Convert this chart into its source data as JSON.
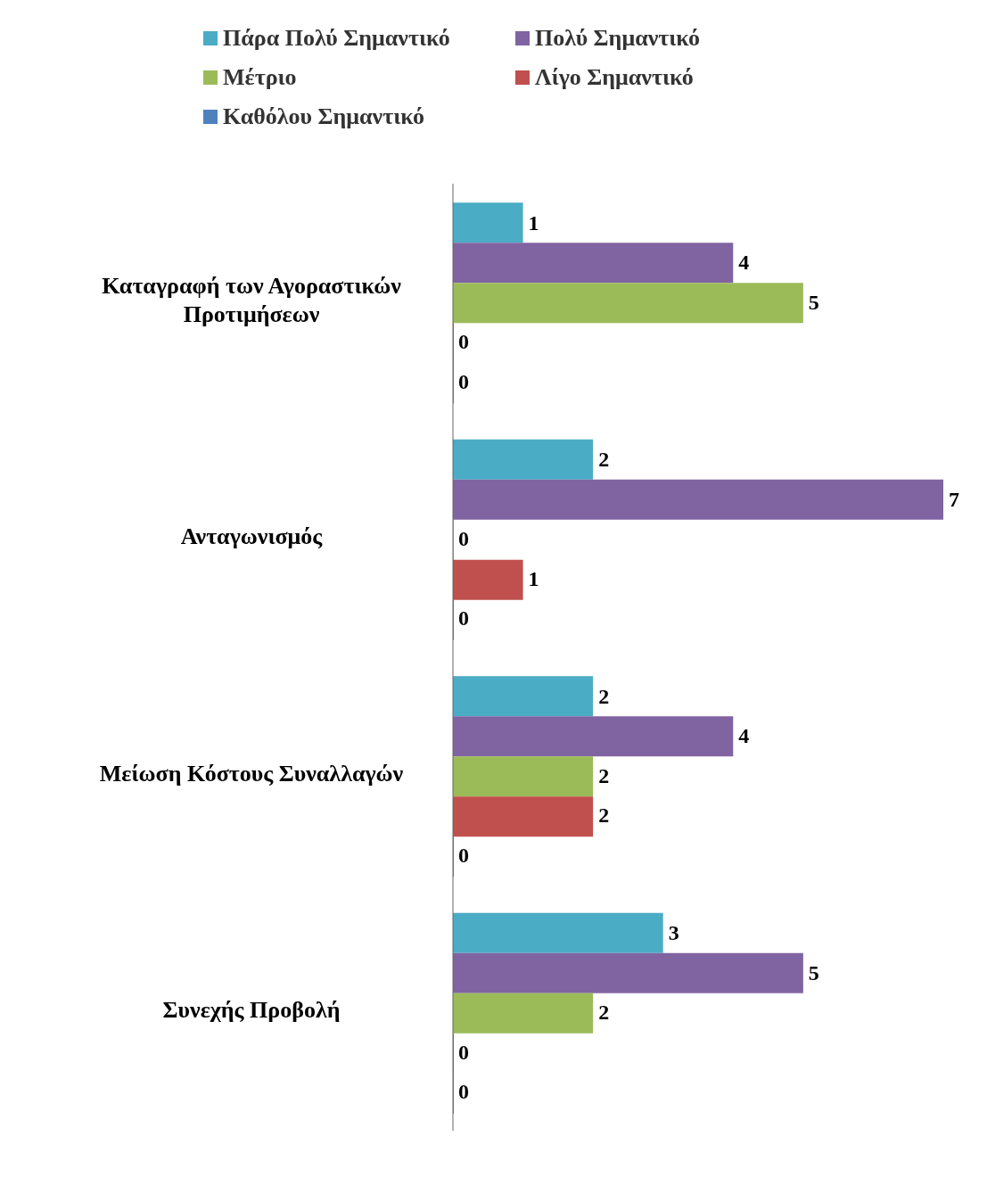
{
  "chart_data": {
    "type": "bar",
    "orientation": "horizontal",
    "categories": [
      "Καταγραφή των Αγοραστικών Προτιμήσεων",
      "Ανταγωνισμός",
      "Μείωση Κόστους Συναλλαγών",
      "Συνεχής Προβολή"
    ],
    "series": [
      {
        "name": "Πάρα Πολύ Σημαντικό",
        "color": "#4bacc6",
        "values": [
          1,
          2,
          2,
          3
        ]
      },
      {
        "name": "Πολύ Σημαντικό",
        "color": "#8064a2",
        "values": [
          4,
          7,
          4,
          5
        ]
      },
      {
        "name": "Μέτριο",
        "color": "#9bbb59",
        "values": [
          5,
          0,
          2,
          2
        ]
      },
      {
        "name": "Λίγο Σημαντικό",
        "color": "#c0504d",
        "values": [
          0,
          1,
          2,
          0
        ]
      },
      {
        "name": "Καθόλου Σημαντικό",
        "color": "#4f81bd",
        "values": [
          0,
          0,
          0,
          0
        ]
      }
    ],
    "data_labels": true,
    "legend": "top",
    "tick_labels": "y"
  }
}
